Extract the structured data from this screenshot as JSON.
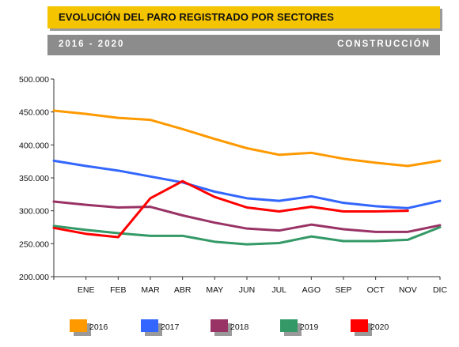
{
  "header": {
    "title": "EVOLUCIÓN DEL PARO REGISTRADO POR SECTORES",
    "period": "2016 - 2020",
    "sector": "CONSTRUCCIÓN"
  },
  "chart_data": {
    "type": "line",
    "categories": [
      "",
      "ENE",
      "FEB",
      "MAR",
      "ABR",
      "MAY",
      "JUN",
      "JUL",
      "AGO",
      "SEP",
      "OCT",
      "NOV",
      "DIC"
    ],
    "ylim": [
      200000,
      500000
    ],
    "yticks": [
      200000,
      250000,
      300000,
      350000,
      400000,
      450000,
      500000
    ],
    "ytick_labels": [
      "200.000",
      "250.000",
      "300.000",
      "350.000",
      "400.000",
      "450.000",
      "500.000"
    ],
    "grid": false,
    "legend_position": "bottom",
    "series": [
      {
        "name": "2016",
        "color": "#ff9900",
        "values": [
          452000,
          447000,
          441000,
          438000,
          424000,
          409000,
          395000,
          385000,
          388000,
          379000,
          373000,
          368000,
          376000
        ]
      },
      {
        "name": "2017",
        "color": "#3366ff",
        "values": [
          376000,
          368000,
          361000,
          352000,
          343000,
          329000,
          319000,
          315000,
          322000,
          312000,
          307000,
          304000,
          315000
        ]
      },
      {
        "name": "2018",
        "color": "#993366",
        "values": [
          314000,
          309000,
          305000,
          306000,
          293000,
          282000,
          273000,
          270000,
          279000,
          272000,
          268000,
          268000,
          278000
        ]
      },
      {
        "name": "2019",
        "color": "#339966",
        "values": [
          277000,
          271000,
          266000,
          262000,
          262000,
          253000,
          249000,
          251000,
          261000,
          254000,
          254000,
          256000,
          275000
        ]
      },
      {
        "name": "2020",
        "color": "#ff0000",
        "values": [
          274000,
          265000,
          260000,
          319000,
          345000,
          321000,
          305000,
          299000,
          306000,
          299000,
          299000,
          300000,
          null
        ]
      }
    ]
  }
}
